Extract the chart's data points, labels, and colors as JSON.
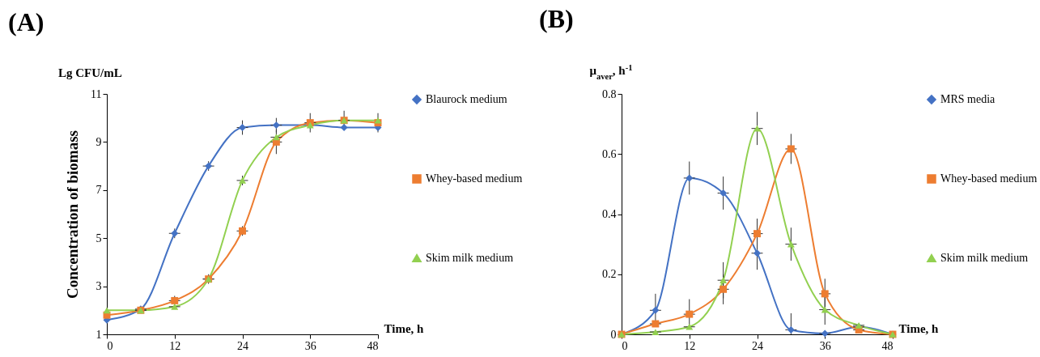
{
  "chart_data": [
    {
      "type": "line",
      "title": "(A)",
      "xlabel": "Time, h",
      "ylabel": "Concentration of biomass",
      "annotations": [
        "Lg CFU/mL"
      ],
      "x": [
        0,
        6,
        12,
        18,
        24,
        30,
        36,
        42,
        48
      ],
      "xlim": [
        0,
        48
      ],
      "xticks": [
        0,
        12,
        24,
        36,
        48
      ],
      "ylim": [
        1,
        11
      ],
      "yticks": [
        1,
        3,
        5,
        7,
        9,
        11
      ],
      "grid": false,
      "legend": "right",
      "line_style": "solid",
      "series": [
        {
          "name": "Blaurock medium",
          "color": "#4472c4",
          "marker": "diamond",
          "values": [
            1.6,
            2.05,
            5.2,
            8.0,
            9.6,
            9.7,
            9.7,
            9.6,
            9.6
          ],
          "errors": [
            null,
            null,
            0.2,
            0.2,
            0.3,
            0.3,
            null,
            null,
            null
          ],
          "xerrors": [
            null,
            1,
            1,
            1,
            1,
            1,
            null,
            null,
            null
          ]
        },
        {
          "name": "Whey-based medium",
          "color": "#ed7d31",
          "marker": "square",
          "values": [
            1.8,
            2.0,
            2.4,
            3.3,
            5.3,
            9.0,
            9.8,
            9.9,
            9.8
          ],
          "errors": [
            null,
            null,
            0.2,
            0.2,
            0.2,
            0.5,
            0.4,
            0.4,
            0.4
          ],
          "xerrors": [
            null,
            1,
            1,
            1,
            1,
            1,
            1,
            1,
            null
          ]
        },
        {
          "name": "Skim milk medium",
          "color": "#92d050",
          "marker": "triangle",
          "values": [
            2.0,
            2.0,
            2.15,
            3.3,
            7.4,
            9.2,
            9.7,
            9.9,
            9.9
          ],
          "errors": [
            null,
            null,
            null,
            null,
            0.2,
            null,
            null,
            null,
            null
          ],
          "xerrors": [
            null,
            1,
            1,
            1,
            1,
            1,
            null,
            null,
            null
          ]
        }
      ]
    },
    {
      "type": "line",
      "title": "(B)",
      "xlabel": "Time, h",
      "ylabel": "μ$_{aver}$, h$^{-1}$",
      "x": [
        0,
        6,
        12,
        18,
        24,
        30,
        36,
        42,
        48
      ],
      "xlim": [
        0,
        48
      ],
      "xticks": [
        0,
        12,
        24,
        36,
        48
      ],
      "ylim": [
        0,
        0.8
      ],
      "yticks": [
        0,
        0.2,
        0.4,
        0.6,
        0.8
      ],
      "grid": false,
      "legend": "right",
      "line_style": "solid",
      "series": [
        {
          "name": "MRS media",
          "color": "#4472c4",
          "marker": "diamond",
          "values": [
            0,
            0.08,
            0.52,
            0.47,
            0.27,
            0.015,
            0.003,
            0.025,
            0
          ],
          "errors": [
            null,
            0.055,
            0.055,
            0.055,
            0.055,
            [
              0,
              0.07
            ],
            null,
            null,
            null
          ],
          "xerrors": [
            null,
            1,
            1,
            1,
            1,
            1,
            1,
            1,
            null
          ]
        },
        {
          "name": "Whey-based medium",
          "color": "#ed7d31",
          "marker": "square",
          "values": [
            0,
            0.035,
            0.067,
            0.15,
            0.335,
            0.617,
            0.135,
            0.015,
            0
          ],
          "errors": [
            null,
            null,
            0.05,
            0.05,
            0.05,
            0.05,
            0.05,
            null,
            null
          ],
          "xerrors": [
            null,
            1,
            1,
            1,
            1,
            1,
            1,
            1,
            null
          ]
        },
        {
          "name": "Skim milk medium",
          "color": "#92d050",
          "marker": "triangle",
          "values": [
            0,
            0.008,
            0.025,
            0.18,
            0.685,
            0.3,
            0.082,
            0.03,
            0
          ],
          "errors": [
            null,
            null,
            null,
            0.06,
            0.055,
            0.055,
            0.05,
            null,
            null
          ],
          "xerrors": [
            null,
            1,
            1,
            1,
            1,
            1,
            1,
            1,
            null
          ]
        }
      ]
    }
  ]
}
